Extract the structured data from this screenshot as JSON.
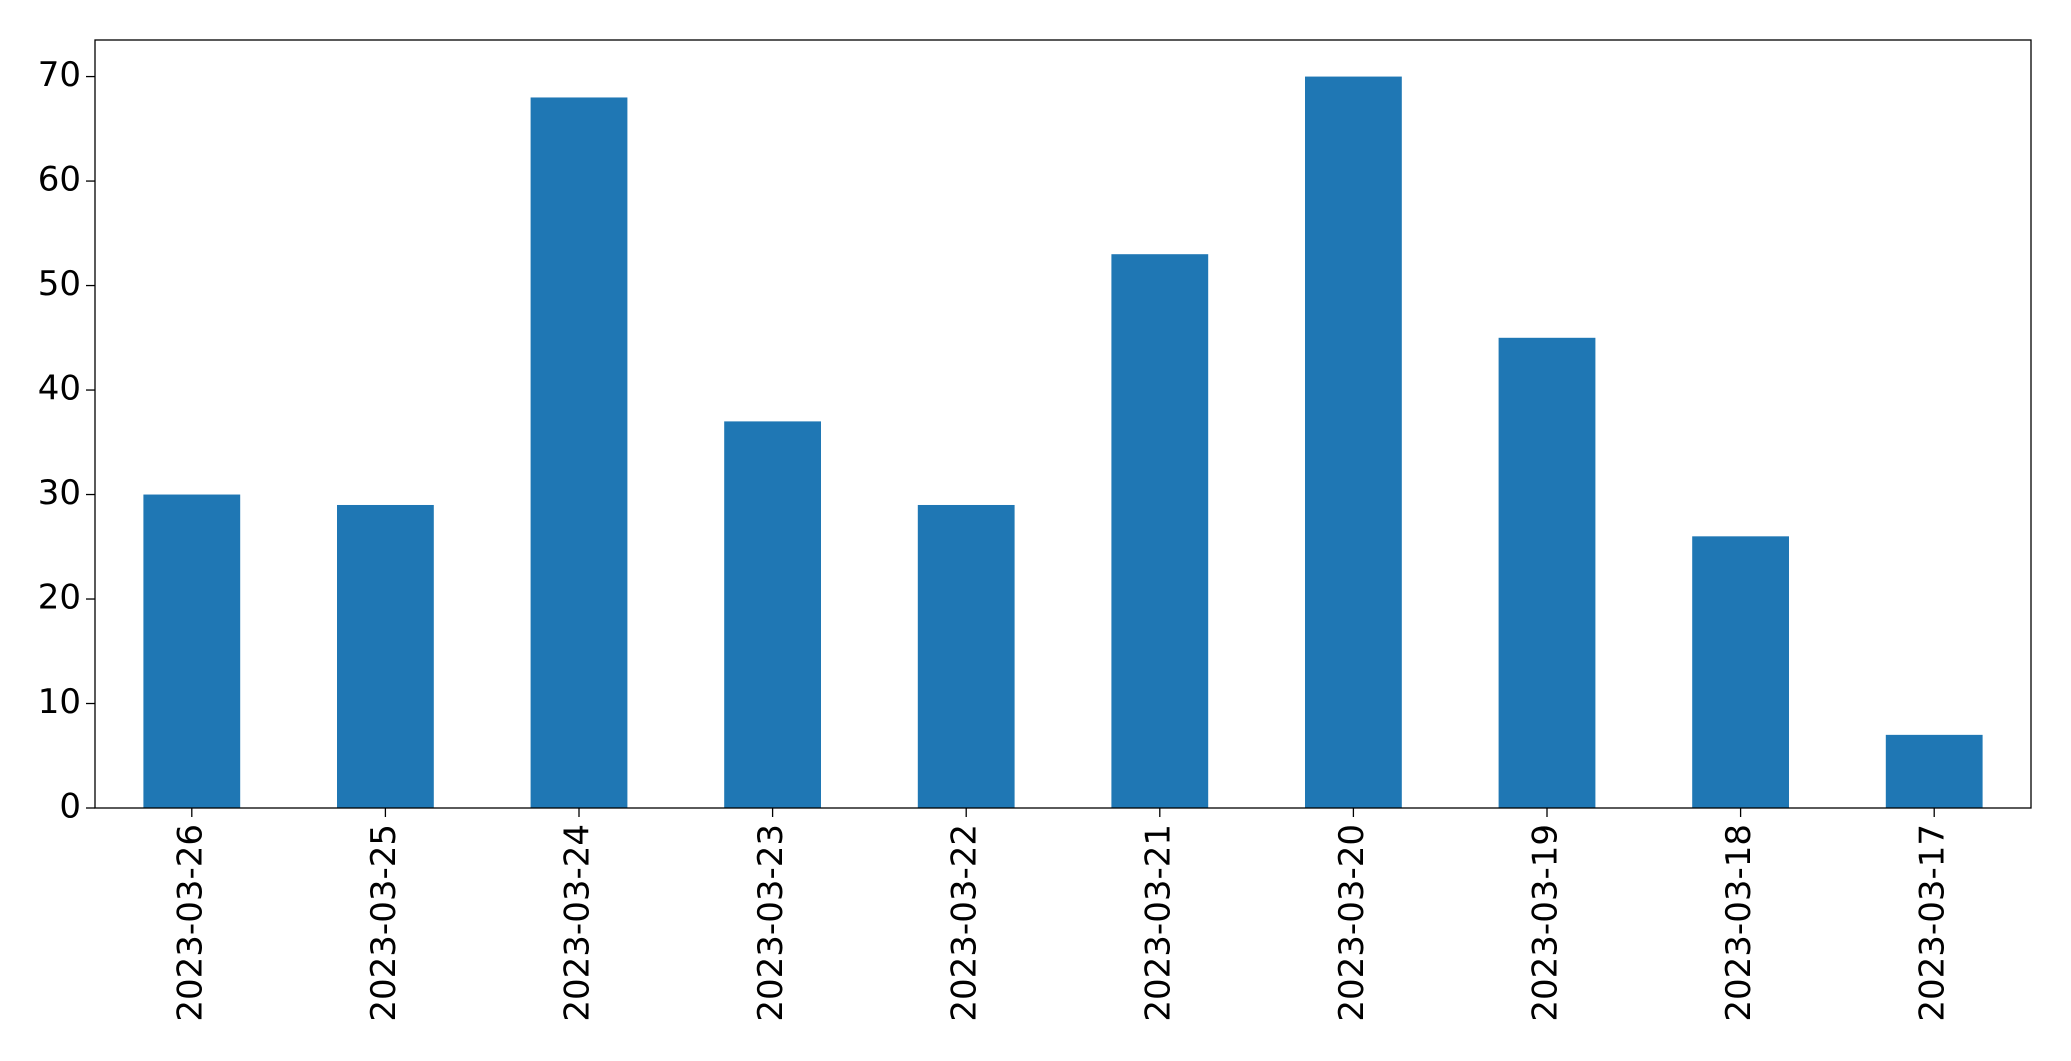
{
  "chart_data": {
    "type": "bar",
    "categories": [
      "2023-03-26",
      "2023-03-25",
      "2023-03-24",
      "2023-03-23",
      "2023-03-22",
      "2023-03-21",
      "2023-03-20",
      "2023-03-19",
      "2023-03-18",
      "2023-03-17"
    ],
    "values": [
      30,
      29,
      68,
      37,
      29,
      53,
      70,
      45,
      26,
      7
    ],
    "color": "#1f77b4",
    "ylim": [
      0,
      73.5
    ],
    "yticks": [
      0,
      10,
      20,
      30,
      40,
      50,
      60,
      70
    ],
    "grid": false
  }
}
